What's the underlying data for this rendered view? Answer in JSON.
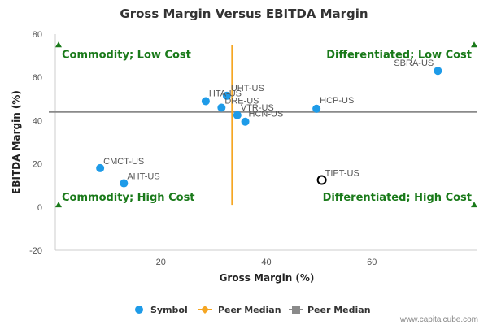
{
  "chart_data": {
    "type": "scatter",
    "title": "Gross Margin Versus EBITDA Margin",
    "xlabel": "Gross Margin (%)",
    "ylabel": "EBITDA Margin (%)",
    "xlim": [
      0,
      80
    ],
    "ylim": [
      -20,
      80
    ],
    "x_ticks": [
      20,
      40,
      60
    ],
    "y_ticks": [
      -20,
      0,
      20,
      40,
      60,
      80
    ],
    "grid": false,
    "points": [
      {
        "label": "SBRA-US",
        "x": 72.5,
        "y": 63
      },
      {
        "label": "HCP-US",
        "x": 49.5,
        "y": 45.5
      },
      {
        "label": "UHT-US",
        "x": 32.5,
        "y": 51.5
      },
      {
        "label": "HTA-US",
        "x": 28.5,
        "y": 49
      },
      {
        "label": "DRE-US",
        "x": 31.5,
        "y": 46
      },
      {
        "label": "VTR-US",
        "x": 34.5,
        "y": 42.5
      },
      {
        "label": "HCN-US",
        "x": 36,
        "y": 39.5
      },
      {
        "label": "CMCT-US",
        "x": 8.5,
        "y": 18
      },
      {
        "label": "AHT-US",
        "x": 13,
        "y": 11
      },
      {
        "label": "TIPT-US",
        "x": 50.5,
        "y": 12.5,
        "highlight": true
      }
    ],
    "peer_median_x": 33.5,
    "peer_median_y": 44,
    "quadrant_labels": [
      "Commodity; Low Cost",
      "Differentiated; Low Cost",
      "Commodity; High Cost",
      "Differentiated; High Cost"
    ],
    "legend": [
      "Symbol",
      "Peer Median",
      "Peer Median"
    ],
    "legend_position": "bottom",
    "colors": {
      "symbol": "#1e9be8",
      "median_x": "#f5a623",
      "median_y": "#8a8a8a",
      "quad": "#1a7a1a"
    }
  },
  "credit": "www.capitalcube.com"
}
